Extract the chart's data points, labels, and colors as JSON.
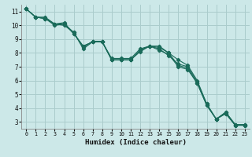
{
  "xlabel": "Humidex (Indice chaleur)",
  "ylabel": "",
  "background_color": "#cce8e8",
  "grid_color": "#aacccc",
  "line_color": "#1a6b5a",
  "series": [
    [
      11.2,
      10.6,
      10.6,
      10.1,
      10.1,
      9.5,
      8.3,
      8.8,
      8.8,
      7.5,
      7.5,
      7.5,
      8.2,
      8.5,
      8.5,
      8.0,
      7.5,
      7.1,
      6.0,
      4.3,
      3.2,
      3.7,
      2.8,
      2.8
    ],
    [
      11.2,
      10.6,
      10.5,
      10.1,
      10.2,
      9.4,
      8.5,
      8.8,
      8.8,
      7.6,
      7.6,
      7.6,
      8.3,
      8.5,
      8.2,
      7.9,
      7.0,
      6.8,
      5.8,
      4.2,
      3.2,
      3.6,
      2.75,
      2.75
    ],
    [
      11.2,
      10.6,
      10.5,
      10.1,
      10.0,
      9.5,
      8.4,
      8.85,
      8.85,
      7.5,
      7.5,
      7.5,
      8.1,
      8.5,
      8.3,
      7.8,
      7.2,
      7.0,
      5.9,
      4.3,
      3.2,
      3.7,
      2.8,
      2.8
    ],
    [
      11.2,
      10.6,
      10.5,
      10.0,
      10.1,
      9.4,
      8.5,
      8.8,
      8.8,
      7.5,
      7.5,
      7.5,
      8.2,
      8.5,
      8.4,
      8.0,
      7.1,
      6.9,
      5.8,
      4.2,
      3.2,
      3.6,
      2.75,
      2.75
    ]
  ],
  "x_values": [
    0,
    1,
    2,
    3,
    4,
    5,
    6,
    7,
    8,
    9,
    10,
    11,
    12,
    13,
    14,
    15,
    16,
    17,
    18,
    19,
    20,
    21,
    22,
    23
  ],
  "xlim": [
    -0.5,
    23.5
  ],
  "ylim": [
    2.5,
    11.5
  ],
  "yticks": [
    3,
    4,
    5,
    6,
    7,
    8,
    9,
    10,
    11
  ],
  "xticks": [
    0,
    1,
    2,
    3,
    4,
    5,
    6,
    7,
    8,
    9,
    10,
    11,
    12,
    13,
    14,
    15,
    16,
    17,
    18,
    19,
    20,
    21,
    22,
    23
  ]
}
